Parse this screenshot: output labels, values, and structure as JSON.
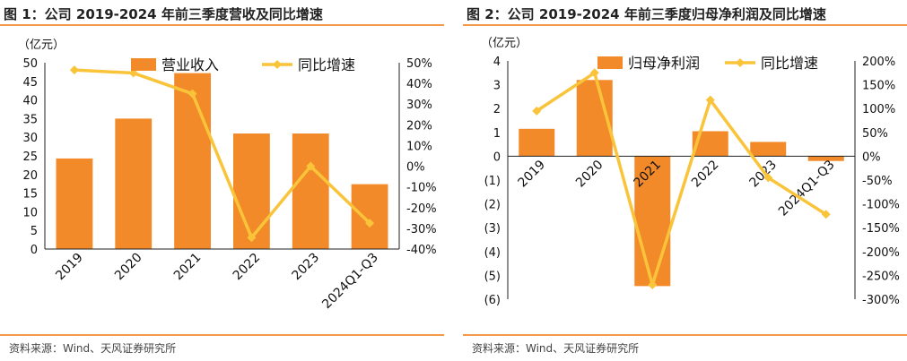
{
  "panels": [
    {
      "title": "图 1：公司 2019-2024 年前三季度营收及同比增速",
      "source": "资料来源：Wind、天风证券研究所"
    },
    {
      "title": "图 2：公司 2019-2024 年前三季度归母净利润及同比增速",
      "source": "资料来源：Wind、天风证券研究所"
    }
  ],
  "chart_data": [
    {
      "type": "bar",
      "unit_label": "（亿元）",
      "categories": [
        "2019",
        "2020",
        "2021",
        "2022",
        "2023",
        "2024Q1-Q3"
      ],
      "series": [
        {
          "name": "营业收入",
          "type": "bar",
          "axis": "left",
          "values": [
            24.3,
            35.0,
            47.2,
            31.0,
            31.0,
            17.4
          ],
          "color": "#f28a2a"
        },
        {
          "name": "同比增速",
          "type": "line",
          "axis": "right",
          "values": [
            46.5,
            45.0,
            35.0,
            -34.5,
            0.0,
            -27.5
          ],
          "color": "#f9c43a"
        }
      ],
      "left_axis": {
        "min": 0,
        "max": 50,
        "ticks": [
          "0",
          "5",
          "10",
          "15",
          "20",
          "25",
          "30",
          "35",
          "40",
          "45",
          "50"
        ]
      },
      "right_axis": {
        "min": -40,
        "max": 50,
        "ticks": [
          "-40%",
          "-30%",
          "-20%",
          "-10%",
          "0%",
          "10%",
          "20%",
          "30%",
          "40%",
          "50%"
        ]
      },
      "legend": "top"
    },
    {
      "type": "bar",
      "unit_label": "（亿元）",
      "categories": [
        "2019",
        "2020",
        "2021",
        "2022",
        "2023",
        "2024Q1-Q3"
      ],
      "series": [
        {
          "name": "归母净利润",
          "type": "bar",
          "axis": "left",
          "values": [
            1.15,
            3.2,
            -5.45,
            1.05,
            0.6,
            -0.2
          ],
          "color": "#f28a2a"
        },
        {
          "name": "同比增速",
          "type": "line",
          "axis": "right",
          "values": [
            95,
            175,
            -270,
            118,
            -45,
            -122
          ],
          "color": "#f9c43a"
        }
      ],
      "left_axis": {
        "min": -6,
        "max": 4,
        "ticks": [
          "(6)",
          "(5)",
          "(4)",
          "(3)",
          "(2)",
          "(1)",
          "0",
          "1",
          "2",
          "3",
          "4"
        ]
      },
      "right_axis": {
        "min": -300,
        "max": 200,
        "ticks": [
          "-300%",
          "-250%",
          "-200%",
          "-150%",
          "-100%",
          "-50%",
          "0%",
          "50%",
          "100%",
          "150%",
          "200%"
        ]
      },
      "legend": "top"
    }
  ]
}
